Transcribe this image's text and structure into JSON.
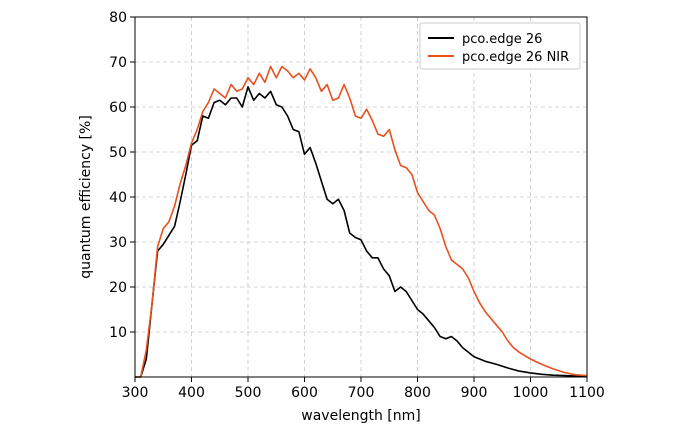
{
  "chart_data": {
    "type": "line",
    "title": "",
    "xlabel": "wavelength [nm]",
    "ylabel": "quantum efficiency [%]",
    "xlim": [
      300,
      1100
    ],
    "ylim": [
      0,
      80
    ],
    "xticks": [
      300,
      400,
      500,
      600,
      700,
      800,
      900,
      1000,
      1100
    ],
    "yticks": [
      10,
      20,
      30,
      40,
      50,
      60,
      70,
      80
    ],
    "grid": true,
    "legend_position": "top-right",
    "series": [
      {
        "name": "pco.edge 26",
        "color": "#000000",
        "x": [
          300,
          310,
          320,
          330,
          340,
          350,
          360,
          370,
          380,
          390,
          400,
          410,
          420,
          430,
          440,
          450,
          460,
          470,
          480,
          490,
          500,
          510,
          520,
          530,
          540,
          550,
          560,
          570,
          580,
          590,
          600,
          610,
          620,
          630,
          640,
          650,
          660,
          670,
          680,
          690,
          700,
          710,
          720,
          730,
          740,
          750,
          760,
          770,
          780,
          790,
          800,
          810,
          820,
          830,
          840,
          850,
          860,
          870,
          880,
          890,
          900,
          920,
          940,
          960,
          980,
          1000,
          1020,
          1040,
          1060,
          1080,
          1100
        ],
        "y": [
          0,
          0,
          4,
          16,
          28,
          29.5,
          31.5,
          33.5,
          39,
          45,
          51.5,
          52.5,
          58,
          57.5,
          61,
          61.5,
          60.5,
          62,
          62,
          60,
          64.5,
          61.5,
          63,
          62,
          63.5,
          60.5,
          60,
          58,
          55,
          54.5,
          49.5,
          51,
          47.5,
          43.5,
          39.5,
          38.5,
          39.5,
          37,
          32,
          31,
          30.5,
          28,
          26.5,
          26.5,
          24,
          22.5,
          19,
          20,
          19,
          17,
          15,
          14,
          12.5,
          11,
          9,
          8.5,
          9,
          8,
          6.5,
          5.5,
          4.5,
          3.5,
          2.8,
          2,
          1.3,
          0.9,
          0.6,
          0.4,
          0.3,
          0.2,
          0.1
        ]
      },
      {
        "name": "pco.edge 26 NIR",
        "color": "#e8501e",
        "x": [
          300,
          310,
          320,
          330,
          340,
          350,
          360,
          370,
          380,
          390,
          400,
          410,
          420,
          430,
          440,
          450,
          460,
          470,
          480,
          490,
          500,
          510,
          520,
          530,
          540,
          550,
          560,
          570,
          580,
          590,
          600,
          610,
          620,
          630,
          640,
          650,
          660,
          670,
          680,
          690,
          700,
          710,
          720,
          730,
          740,
          750,
          760,
          770,
          780,
          790,
          800,
          810,
          820,
          830,
          840,
          850,
          860,
          870,
          880,
          890,
          900,
          910,
          920,
          930,
          940,
          950,
          960,
          970,
          980,
          1000,
          1020,
          1040,
          1060,
          1080,
          1100
        ],
        "y": [
          0,
          0,
          6,
          16,
          29,
          33,
          34.5,
          38,
          43,
          47,
          52,
          55,
          59,
          61,
          64,
          63,
          62,
          65,
          63.5,
          64,
          66.5,
          65,
          67.5,
          65.5,
          69,
          66.5,
          69,
          68,
          66.5,
          67.5,
          66,
          68.5,
          66.5,
          63.5,
          65,
          61.5,
          62,
          65,
          62,
          58,
          57.5,
          59.5,
          57,
          54,
          53.5,
          55,
          50.5,
          47,
          46.5,
          45,
          41,
          39,
          37,
          36,
          33,
          29,
          26,
          25,
          24,
          22,
          19,
          16.5,
          14.5,
          13,
          11.5,
          10,
          8,
          6.5,
          5.5,
          4,
          2.8,
          1.8,
          1,
          0.5,
          0.3
        ]
      }
    ]
  }
}
